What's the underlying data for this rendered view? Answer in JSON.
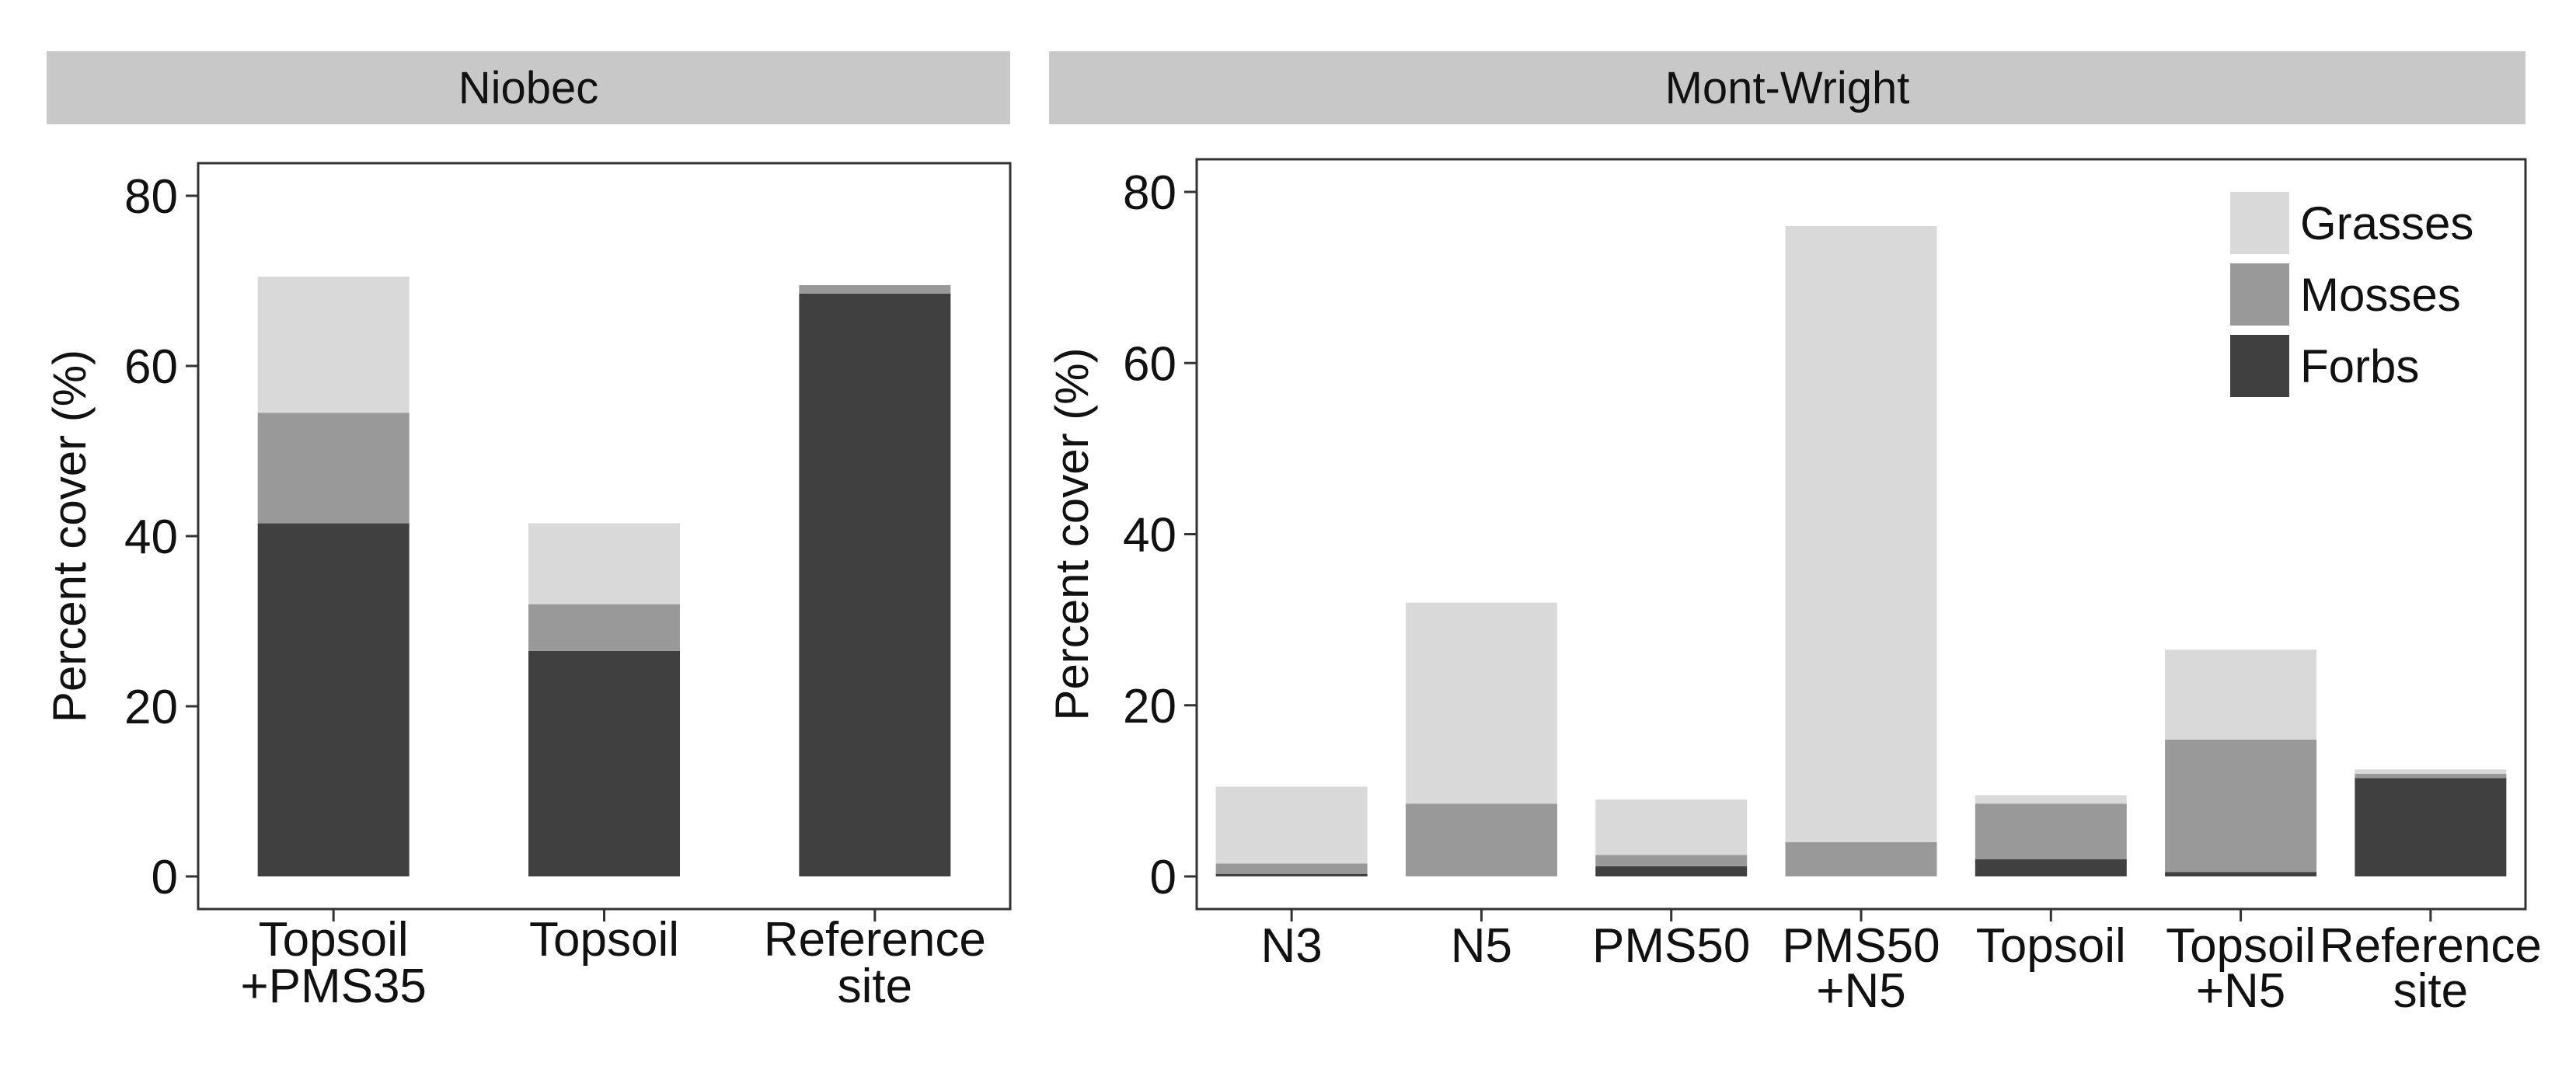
{
  "colors": {
    "grasses": "#d9d9d9",
    "mosses": "#999999",
    "forbs": "#404040",
    "strip": "#c8c8c8",
    "axis": "#333333"
  },
  "chart_data": [
    {
      "type": "bar",
      "stacked": true,
      "panel_title": "Niobec",
      "ylabel": "Percent cover (%)",
      "ylim": [
        0,
        80
      ],
      "yticks": [
        0,
        20,
        40,
        60,
        80
      ],
      "categories": [
        [
          "Topsoil",
          "+PMS35"
        ],
        [
          "Topsoil"
        ],
        [
          "Reference",
          "site"
        ]
      ],
      "series": [
        {
          "key": "forbs",
          "values": [
            41.5,
            26.5,
            68.5
          ]
        },
        {
          "key": "mosses",
          "values": [
            13,
            5.5,
            1
          ]
        },
        {
          "key": "grasses",
          "values": [
            16,
            9.5,
            0
          ]
        }
      ],
      "grid": false
    },
    {
      "type": "bar",
      "stacked": true,
      "panel_title": "Mont-Wright",
      "ylabel": "Percent cover (%)",
      "ylim": [
        0,
        80
      ],
      "yticks": [
        0,
        20,
        40,
        60,
        80
      ],
      "categories": [
        [
          "N3"
        ],
        [
          "N5"
        ],
        [
          "PMS50"
        ],
        [
          "PMS50",
          "+N5"
        ],
        [
          "Topsoil"
        ],
        [
          "Topsoil",
          "+N5"
        ],
        [
          "Reference",
          "site"
        ]
      ],
      "series": [
        {
          "key": "forbs",
          "name": "Forbs",
          "values": [
            0.3,
            0,
            1.2,
            0,
            2,
            0.5,
            11.5
          ]
        },
        {
          "key": "mosses",
          "name": "Mosses",
          "values": [
            1.2,
            8.5,
            1.3,
            4,
            6.5,
            15.5,
            0.5
          ]
        },
        {
          "key": "grasses",
          "name": "Grasses",
          "values": [
            9,
            23.5,
            6.5,
            72,
            1,
            10.5,
            0.5
          ]
        }
      ],
      "legend": {
        "position": "top-right",
        "entries": [
          {
            "key": "grasses",
            "label": "Grasses"
          },
          {
            "key": "mosses",
            "label": "Mosses"
          },
          {
            "key": "forbs",
            "label": "Forbs"
          }
        ]
      },
      "grid": false
    }
  ]
}
